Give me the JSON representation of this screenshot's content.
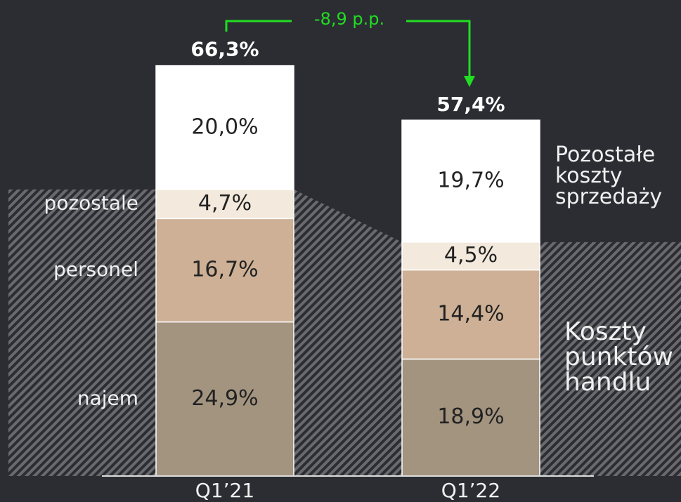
{
  "chart_data": {
    "type": "stacked_bar",
    "categories": [
      "Q1’21",
      "Q1’22"
    ],
    "series": [
      {
        "name": "najem",
        "color": "#a39480",
        "values": [
          24.9,
          18.9
        ],
        "value_labels": [
          "24,9%",
          "18,9%"
        ]
      },
      {
        "name": "personel",
        "color": "#cdb095",
        "values": [
          16.7,
          14.4
        ],
        "value_labels": [
          "16,7%",
          "14,4%"
        ]
      },
      {
        "name": "pozostale",
        "color": "#f3e9dc",
        "values": [
          4.7,
          4.5
        ],
        "value_labels": [
          "4,7%",
          "4,5%"
        ]
      },
      {
        "name": "Pozostałe koszty sprzedaży",
        "color": "#ffffff",
        "values": [
          20.0,
          19.7
        ],
        "value_labels": [
          "20,0%",
          "19,7%"
        ]
      }
    ],
    "totals": [
      66.3,
      57.4
    ],
    "total_labels": [
      "66,3%",
      "57,4%"
    ],
    "annotation": "-8,9 p.p.",
    "annotation_color": "#22dd22",
    "group_label": "Koszty punktów handlu",
    "ylim": [
      0,
      70
    ]
  }
}
